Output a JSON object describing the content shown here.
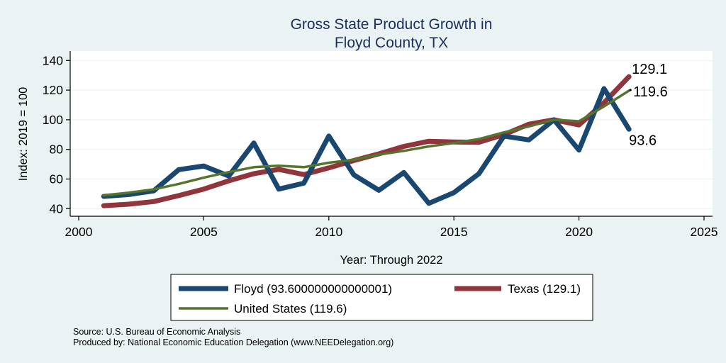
{
  "colors": {
    "background": "#eaf2f3",
    "plot_background": "#ffffff",
    "floyd": "#1a476f",
    "texas": "#90353b",
    "united_states": "#55752f",
    "title": "#1a2f5c"
  },
  "chart_data": {
    "type": "line",
    "title": "Gross State Product Growth in",
    "subtitle": "Floyd County, TX",
    "xlabel": "Year: Through 2022",
    "ylabel": "Index: 2019 = 100",
    "xlim": [
      2000,
      2025
    ],
    "ylim": [
      35,
      145
    ],
    "xticks": [
      2000,
      2005,
      2010,
      2015,
      2020,
      2025
    ],
    "yticks": [
      40,
      60,
      80,
      100,
      120,
      140
    ],
    "grid": true,
    "legend_position": "bottom",
    "x": [
      2001,
      2002,
      2003,
      2004,
      2005,
      2006,
      2007,
      2008,
      2009,
      2010,
      2011,
      2012,
      2013,
      2014,
      2015,
      2016,
      2017,
      2018,
      2019,
      2020,
      2021,
      2022
    ],
    "series": [
      {
        "name": "Floyd",
        "key": "floyd",
        "legend_label": "Floyd  (93.600000000000001)",
        "end_label": "93.6",
        "values": [
          48.3,
          49.5,
          52,
          66.3,
          68.8,
          62,
          84.3,
          53.2,
          57.2,
          89,
          62.8,
          52.4,
          64.4,
          43.6,
          50.8,
          63.6,
          89,
          86.4,
          100,
          79.5,
          121,
          93.6
        ]
      },
      {
        "name": "Texas",
        "key": "texas",
        "legend_label": "Texas (129.1)",
        "end_label": "129.1",
        "values": [
          42,
          43,
          44.8,
          48.8,
          53.2,
          58.8,
          63.6,
          66.5,
          63,
          67.5,
          72.5,
          77,
          82,
          85.5,
          85,
          84.8,
          90,
          97,
          100,
          96.5,
          111.5,
          129.1
        ]
      },
      {
        "name": "United States",
        "key": "united_states",
        "legend_label": "United States (119.6)",
        "end_label": "119.6",
        "values": [
          49,
          50.8,
          53,
          56.7,
          60.9,
          64.7,
          68,
          69,
          68,
          71,
          73,
          76.5,
          79,
          82,
          84.3,
          87,
          91.5,
          95.5,
          100,
          99,
          109,
          119.6
        ]
      }
    ]
  },
  "notes": {
    "source": "Source: U.S. Bureau of Economic Analysis",
    "produced_by": "Produced by: National Economic Education Delegation (www.NEEDelegation.org)"
  }
}
